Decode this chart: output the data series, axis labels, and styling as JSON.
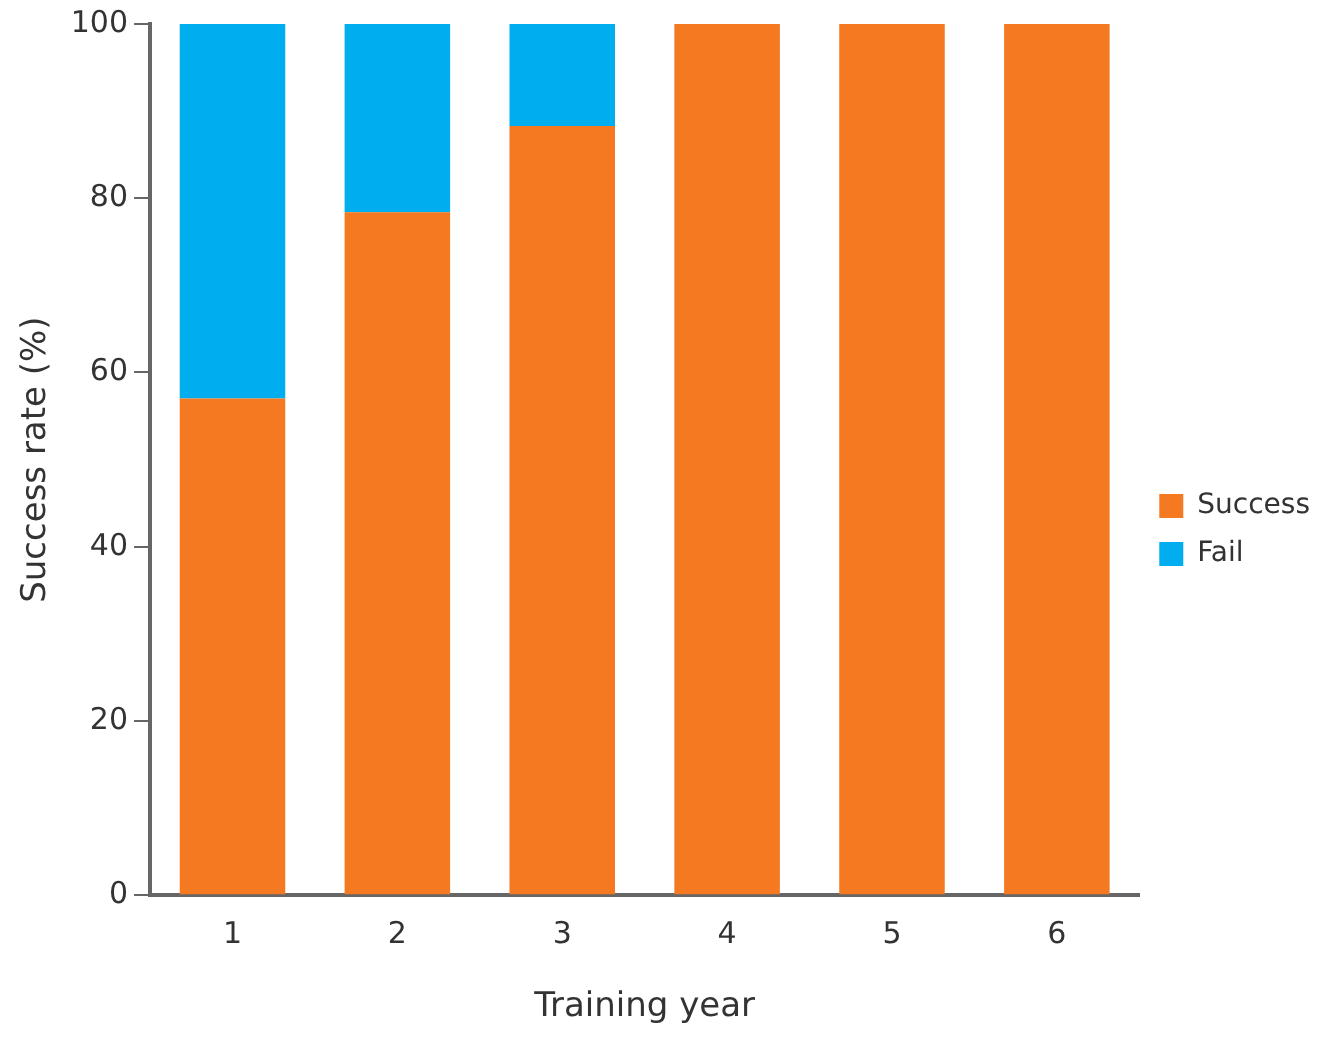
{
  "chart_data": {
    "type": "bar",
    "stacked": true,
    "xlabel": "Training year",
    "ylabel": "Success rate (%)",
    "categories": [
      "1",
      "2",
      "3",
      "4",
      "5",
      "6"
    ],
    "series": [
      {
        "name": "Success",
        "color": "#f47920",
        "values": [
          57,
          78.4,
          88.3,
          100,
          100,
          100
        ]
      },
      {
        "name": "Fail",
        "color": "#00aeef",
        "values": [
          43,
          21.6,
          11.7,
          0,
          0,
          0
        ]
      }
    ],
    "ylim": [
      0,
      100
    ],
    "yticks": [
      0,
      20,
      40,
      60,
      80,
      100
    ],
    "grid": false,
    "legend": "right"
  }
}
